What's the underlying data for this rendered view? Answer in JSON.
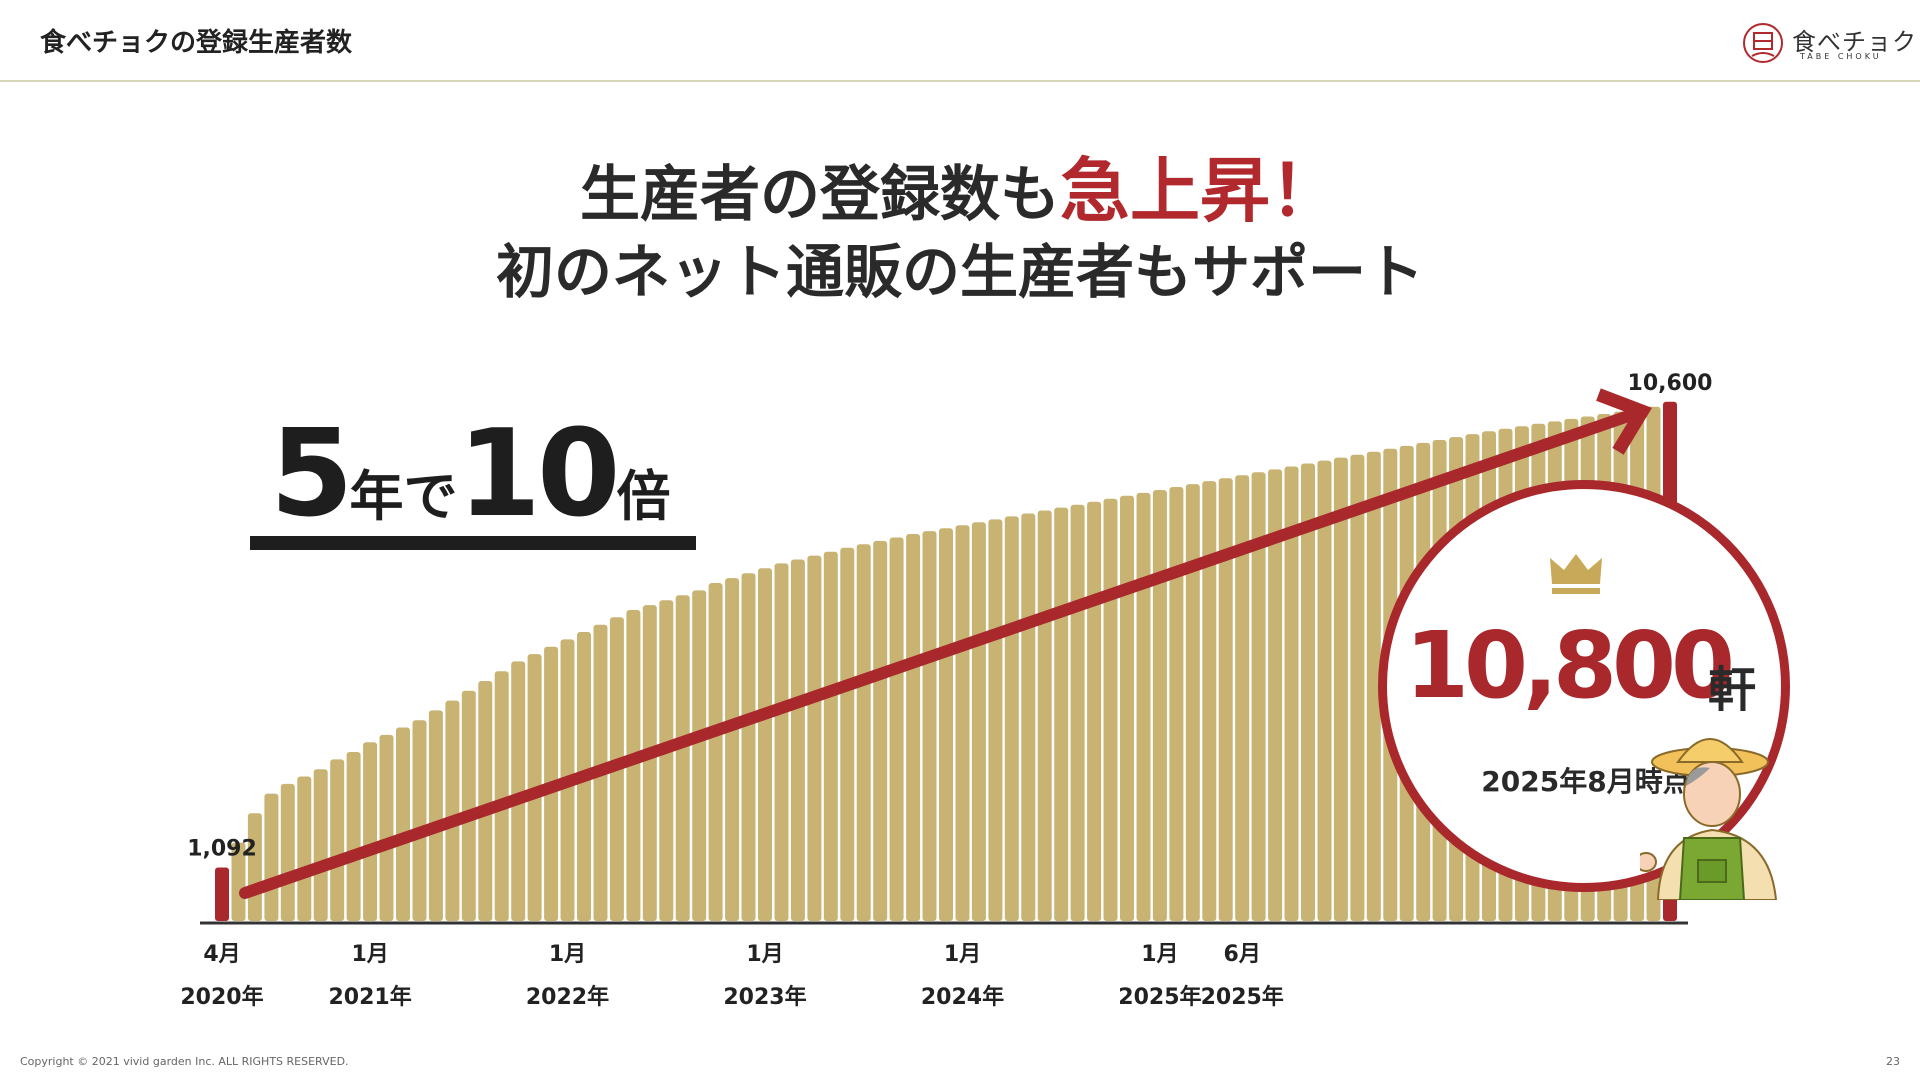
{
  "header": {
    "title": "食べチョクの登録生産者数",
    "logo_text": "食べチョク",
    "logo_sub": "TABE CHOKU"
  },
  "headline": {
    "line1_prefix": "生産者の登録数も",
    "line1_emphasis": "急上昇！",
    "line2": "初のネット通販の生産者もサポート"
  },
  "growth_callout": {
    "years": "5",
    "year_unit": "年で",
    "multiplier": "10",
    "multiplier_unit": "倍"
  },
  "highlight": {
    "value": "10,800",
    "unit": "軒",
    "date": "2025年8月時点",
    "icon": "crown-icon",
    "color": "#a8282c"
  },
  "chart_data": {
    "type": "bar",
    "x_range": [
      "2020-04",
      "2025-06"
    ],
    "x_ticks": [
      {
        "month": "4月",
        "year": "2020年"
      },
      {
        "month": "1月",
        "year": "2021年"
      },
      {
        "month": "1月",
        "year": "2022年"
      },
      {
        "month": "1月",
        "year": "2023年"
      },
      {
        "month": "1月",
        "year": "2024年"
      },
      {
        "month": "1月",
        "year": "2025年"
      },
      {
        "month": "6月",
        "year": "2025年"
      }
    ],
    "values": [
      1092,
      1600,
      2200,
      2600,
      2800,
      2950,
      3100,
      3300,
      3450,
      3650,
      3800,
      3950,
      4100,
      4300,
      4500,
      4700,
      4900,
      5100,
      5300,
      5450,
      5600,
      5750,
      5900,
      6050,
      6200,
      6350,
      6450,
      6550,
      6650,
      6750,
      6900,
      7000,
      7100,
      7200,
      7300,
      7380,
      7460,
      7540,
      7620,
      7690,
      7760,
      7830,
      7900,
      7960,
      8020,
      8080,
      8140,
      8200,
      8260,
      8320,
      8380,
      8440,
      8500,
      8560,
      8620,
      8680,
      8740,
      8800,
      8860,
      8920,
      8980,
      9040,
      9100,
      9160,
      9220,
      9280,
      9340,
      9400,
      9460,
      9520,
      9580,
      9640,
      9700,
      9760,
      9820,
      9880,
      9940,
      10000,
      10050,
      10100,
      10150,
      10200,
      10250,
      10300,
      10350,
      10400,
      10450,
      10500,
      10600
    ],
    "highlight_bars": [
      {
        "index": 0,
        "label": "1,092"
      },
      {
        "index": 88,
        "label": "10,600"
      }
    ],
    "ylim": [
      0,
      10800
    ],
    "bar_color": "#c8b373",
    "highlight_color": "#a8282c",
    "trend_arrow": true
  },
  "footer": {
    "copyright": "Copyright © 2021 vivid garden Inc. ALL RIGHTS RESERVED.",
    "page_number": "23"
  }
}
